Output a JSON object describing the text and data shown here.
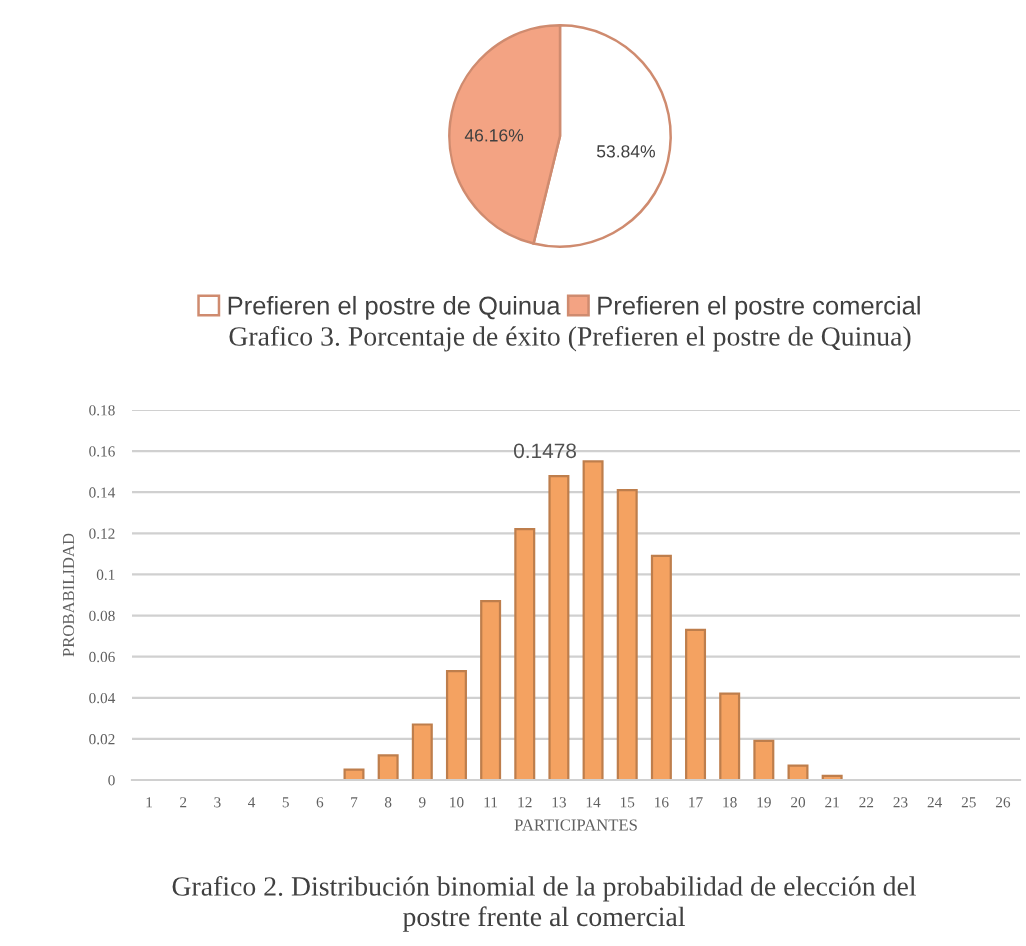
{
  "chart_data": [
    {
      "type": "pie",
      "title": "Grafico 3. Porcentaje de éxito (Prefieren el postre de Quinua)",
      "categories": [
        "Prefieren el postre de Quinua",
        "Prefieren el postre comercial"
      ],
      "values": [
        53.84,
        46.16
      ],
      "colors": [
        "#ffffff",
        "#f3a383"
      ],
      "value_labels": [
        "53.84%",
        "46.16%"
      ],
      "legend": "bottom"
    },
    {
      "type": "bar",
      "title": "Grafico 2. Distribución binomial de la probabilidad de elección del postre frente al comercial",
      "xlabel": "PARTICIPANTES",
      "ylabel": "PROBABILIDAD",
      "categories": [
        "1",
        "2",
        "3",
        "4",
        "5",
        "6",
        "7",
        "8",
        "9",
        "10",
        "11",
        "12",
        "13",
        "14",
        "15",
        "16",
        "17",
        "18",
        "19",
        "20",
        "21",
        "22",
        "23",
        "24",
        "25",
        "26"
      ],
      "values": [
        0,
        0,
        0,
        0,
        0,
        0,
        0.005,
        0.012,
        0.027,
        0.053,
        0.087,
        0.122,
        0.1478,
        0.155,
        0.141,
        0.109,
        0.073,
        0.042,
        0.019,
        0.007,
        0.002,
        0,
        0,
        0,
        0,
        0
      ],
      "value_labels": [
        null,
        null,
        null,
        null,
        null,
        null,
        null,
        null,
        null,
        null,
        null,
        null,
        "0.1478",
        null,
        null,
        null,
        null,
        null,
        null,
        null,
        null,
        null,
        null,
        null,
        null,
        null
      ],
      "color": "#f4a261",
      "ylim": [
        0,
        0.18
      ],
      "yticks": [
        0,
        0.02,
        0.04,
        0.06,
        0.08,
        0.1,
        0.12,
        0.14,
        0.16,
        0.18
      ],
      "grid": "y"
    }
  ]
}
